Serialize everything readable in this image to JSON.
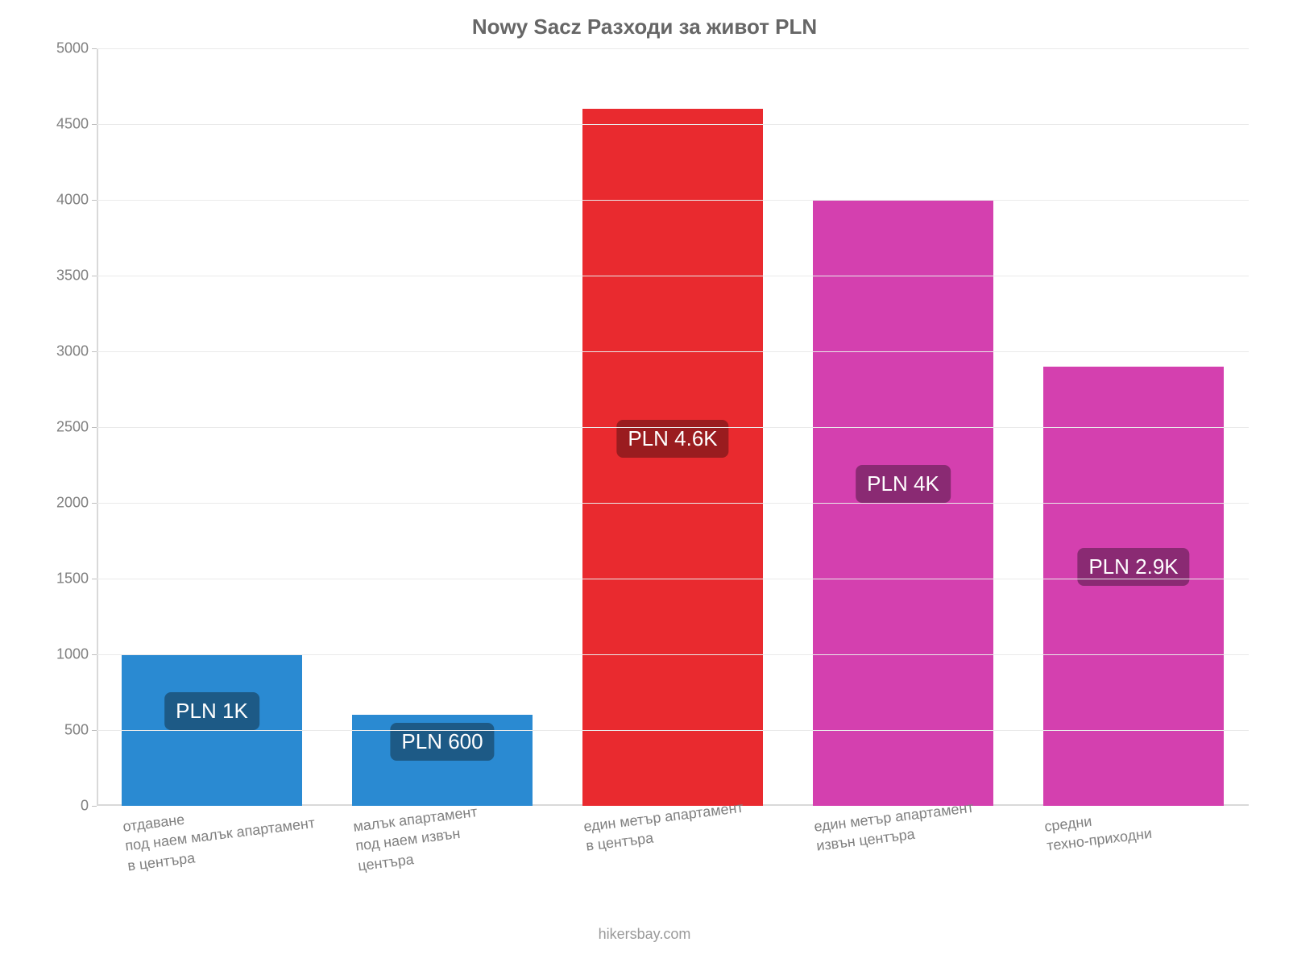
{
  "title": "Nowy Sacz Разходи за живот PLN",
  "attribution": "hikersbay.com",
  "chart": {
    "type": "bar",
    "background_color": "#ffffff",
    "grid_color": "#eaeaea",
    "axis_color": "#d9d9d9",
    "tick_color": "#808080",
    "tick_fontsize": 18,
    "title_fontsize": 26,
    "title_color": "#666666",
    "ylim": [
      0,
      5000
    ],
    "ytick_step": 500,
    "bar_width_ratio": 0.78,
    "categories": [
      "отдаване\nпод наем малък апартамент\nв центъра",
      "малък апартамент\nпод наем извън\nцентъра",
      "един метър апартамент\nв центъра",
      "един метър апартамент\nизвън центъра",
      "средни\nтехно-приходни"
    ],
    "values": [
      1000,
      600,
      4600,
      4000,
      2900
    ],
    "value_labels": [
      "PLN 1K",
      "PLN 600",
      "PLN 4.6K",
      "PLN 4K",
      "PLN 2.9K"
    ],
    "bar_colors": [
      "#2a8ad2",
      "#2a8ad2",
      "#e92a2f",
      "#d440af",
      "#d440af"
    ],
    "badge_colors": [
      "#1d5a86",
      "#1d5a86",
      "#9a1c1f",
      "#8a2a73",
      "#8a2a73"
    ],
    "badge_text_color": "#ffffff",
    "badge_fontsize": 26,
    "xlabel_fontsize": 18,
    "xlabel_color": "#808080",
    "xlabel_rotate_deg": -7
  }
}
